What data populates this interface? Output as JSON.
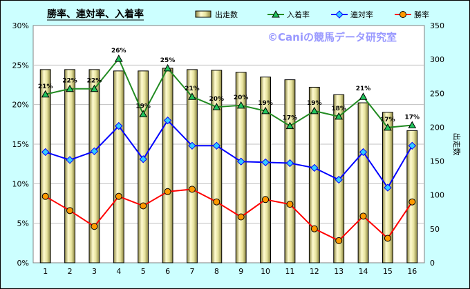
{
  "chart_data": {
    "type": "bar",
    "title": "勝率、連対率、入着率",
    "watermark": "©Caniの競馬データ研究室",
    "xlabel": "",
    "ylabel": "",
    "y2label": "出走数",
    "categories": [
      "1",
      "2",
      "3",
      "4",
      "5",
      "6",
      "7",
      "8",
      "9",
      "10",
      "11",
      "12",
      "13",
      "14",
      "15",
      "16"
    ],
    "ylim": [
      0,
      30
    ],
    "y_ticks": [
      "0%",
      "5%",
      "10%",
      "15%",
      "20%",
      "25%",
      "30%"
    ],
    "y2lim": [
      0,
      350
    ],
    "y2_ticks": [
      "0",
      "50",
      "100",
      "150",
      "200",
      "250",
      "300",
      "350"
    ],
    "grid": true,
    "legend_position": "top",
    "series": [
      {
        "name": "出走数",
        "type": "bar",
        "axis": "right",
        "color": "#e8e4a0",
        "values": [
          285,
          285,
          285,
          283,
          283,
          287,
          285,
          284,
          281,
          274,
          270,
          259,
          248,
          236,
          222,
          195
        ]
      },
      {
        "name": "入着率",
        "type": "line",
        "axis": "left",
        "color": "#228b22",
        "values": [
          21.3,
          22.0,
          22.0,
          25.8,
          18.8,
          24.6,
          21.0,
          19.7,
          19.9,
          19.2,
          17.3,
          19.2,
          18.5,
          21.0,
          17.1,
          17.4
        ],
        "labels": [
          "21%",
          "22%",
          "22%",
          "26%",
          "19%",
          "25%",
          "21%",
          "20%",
          "20%",
          "19%",
          "17%",
          "19%",
          "18%",
          "21%",
          "17%",
          "17%"
        ]
      },
      {
        "name": "連対率",
        "type": "line",
        "axis": "left",
        "color": "#0000ff",
        "values": [
          14.0,
          13.0,
          14.1,
          17.3,
          13.1,
          18.0,
          14.8,
          14.8,
          12.8,
          12.7,
          12.6,
          12.0,
          10.5,
          14.0,
          9.5,
          14.8
        ]
      },
      {
        "name": "勝率",
        "type": "line",
        "axis": "left",
        "color": "#ff0000",
        "values": [
          8.4,
          6.6,
          4.6,
          8.4,
          7.2,
          9.0,
          9.3,
          7.7,
          5.8,
          8.0,
          7.4,
          4.3,
          2.8,
          5.9,
          3.1,
          7.7
        ]
      }
    ]
  }
}
